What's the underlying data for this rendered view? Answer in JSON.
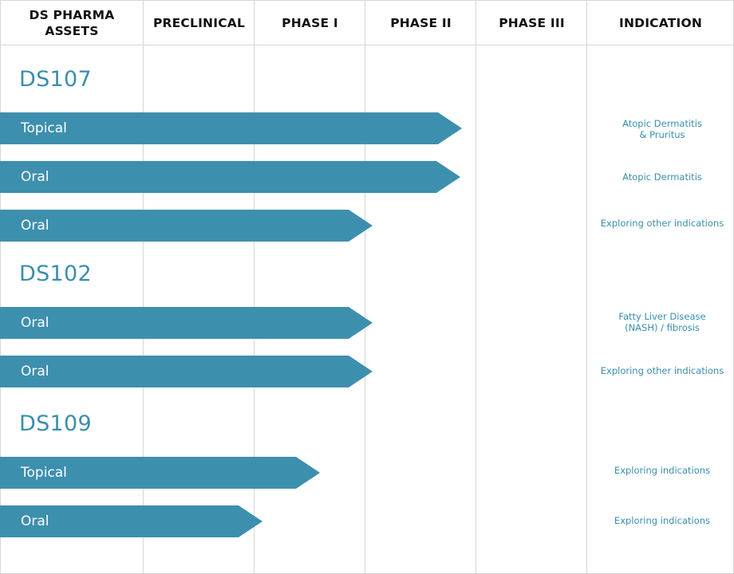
{
  "headers": {
    "assets": [
      "DS PHARMA",
      "ASSETS"
    ],
    "preclinical": "PRECLINICAL",
    "phase1": "PHASE I",
    "phase2": "PHASE II",
    "phase3": "PHASE III",
    "indication": "INDICATION"
  },
  "colors": {
    "bar": "#3d8fae",
    "asset_text": "#3a8ead",
    "indication_text": "#3a8ead",
    "grid_line": "#d6d6d6"
  },
  "assets": [
    {
      "name": "DS107",
      "programs": [
        {
          "route": "Topical",
          "indication": [
            "Atopic Dermatitis",
            "& Pruritus"
          ]
        },
        {
          "route": "Oral",
          "indication": [
            "Atopic Dermatitis"
          ]
        },
        {
          "route": "Oral",
          "indication": [
            "Exploring other indications"
          ]
        }
      ]
    },
    {
      "name": "DS102",
      "programs": [
        {
          "route": "Oral",
          "indication": [
            "Fatty Liver Disease",
            "(NASH) / fibrosis"
          ]
        },
        {
          "route": "Oral",
          "indication": [
            "Exploring other indications"
          ]
        }
      ]
    },
    {
      "name": "DS109",
      "programs": [
        {
          "route": "Topical",
          "indication": [
            "Exploring indications"
          ]
        },
        {
          "route": "Oral",
          "indication": [
            "Exploring indications"
          ]
        }
      ]
    }
  ]
}
